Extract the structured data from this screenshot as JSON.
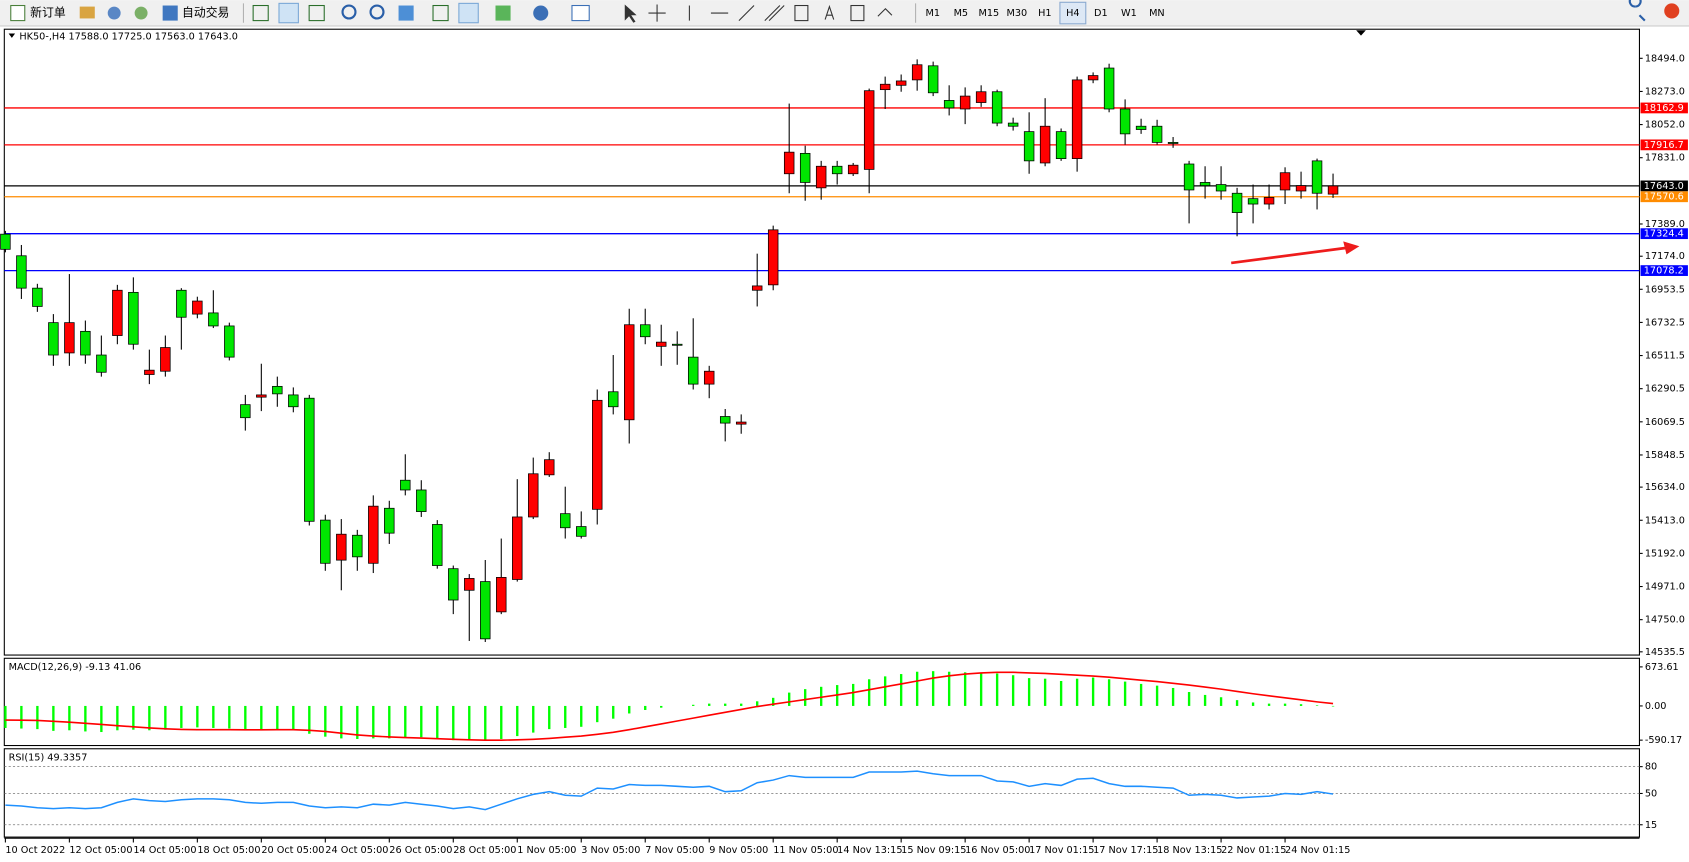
{
  "toolbar": {
    "new_order": "新订单",
    "auto_trading": "自动交易",
    "timeframes": [
      "M1",
      "M5",
      "M15",
      "M30",
      "H1",
      "H4",
      "D1",
      "W1",
      "MN"
    ]
  },
  "chart_data": [
    {
      "type": "candlestick",
      "title": "HK50-,H4  17588.0 17725.0 17563.0 17643.0",
      "up_color": "#ff0000",
      "down_color": "#00e600",
      "categories": [
        "10 Oct 2022",
        null,
        null,
        null,
        "12 Oct 05:00",
        null,
        null,
        null,
        "14 Oct 05:00",
        null,
        null,
        null,
        "18 Oct 05:00",
        null,
        null,
        null,
        "20 Oct 05:00",
        null,
        null,
        null,
        "24 Oct 05:00",
        null,
        null,
        null,
        "26 Oct 05:00",
        null,
        null,
        null,
        "28 Oct 05:00",
        null,
        null,
        null,
        "1 Nov 05:00",
        null,
        null,
        null,
        "3 Nov 05:00",
        null,
        null,
        null,
        "7 Nov 05:00",
        null,
        null,
        null,
        "9 Nov 05:00",
        null,
        null,
        null,
        "11 Nov 05:00",
        null,
        null,
        null,
        "14 Nov 13:15",
        null,
        null,
        null,
        "15 Nov 09:15",
        null,
        null,
        null,
        "16 Nov 05:00",
        null,
        null,
        null,
        "17 Nov 01:15",
        null,
        null,
        null,
        "17 Nov 17:15",
        null,
        null,
        null,
        "18 Nov 13:15",
        null,
        null,
        null,
        "22 Nov 01:15",
        null,
        null,
        null,
        "24 Nov 01:15",
        null,
        null,
        null
      ],
      "open": [
        17321,
        17177,
        16961,
        16731,
        16529,
        16673,
        16515,
        16645,
        16933,
        16385,
        16407,
        16947,
        16788,
        16796,
        16709,
        16184,
        16234,
        16306,
        16249,
        16227,
        15414,
        15147,
        15313,
        15126,
        15493,
        15680,
        15615,
        15385,
        15090,
        14946,
        15004,
        14802,
        15018,
        15435,
        15716,
        15457,
        15371,
        15486,
        16270,
        16083,
        16717,
        16573,
        16587,
        16501,
        16321,
        16105,
        16054,
        16947,
        16983,
        17724,
        17860,
        17630,
        17774,
        17724,
        17753,
        18285,
        18314,
        18350,
        18444,
        18213,
        18156,
        18199,
        18271,
        18062,
        18005,
        17796,
        18005,
        17825,
        18350,
        18429,
        18156,
        18041,
        18041,
        17933,
        17789,
        17666,
        17652,
        17594,
        17558,
        17522,
        17616,
        17609,
        17810,
        17588
      ],
      "high": [
        17343,
        17249,
        16990,
        16788,
        17055,
        16745,
        16645,
        16983,
        17033,
        16551,
        16645,
        16961,
        16904,
        16947,
        16731,
        16249,
        16457,
        16371,
        16299,
        16249,
        15450,
        15421,
        15349,
        15579,
        15543,
        15853,
        15680,
        15414,
        15111,
        15054,
        15148,
        15291,
        15687,
        15831,
        15867,
        15637,
        15472,
        16285,
        16515,
        16824,
        16824,
        16717,
        16673,
        16760,
        16443,
        16155,
        16119,
        17191,
        17378,
        18192,
        17911,
        17810,
        17810,
        17796,
        18292,
        18372,
        18386,
        18487,
        18472,
        18314,
        18300,
        18314,
        18285,
        18098,
        18134,
        18228,
        18026,
        18372,
        18400,
        18458,
        18220,
        18091,
        18084,
        17969,
        17810,
        17774,
        17774,
        17630,
        17652,
        17652,
        17767,
        17738,
        17825,
        17725
      ],
      "low": [
        17200,
        16889,
        16803,
        16443,
        16443,
        16457,
        16371,
        16587,
        16551,
        16321,
        16371,
        16551,
        16760,
        16695,
        16479,
        16011,
        16141,
        16170,
        16133,
        15378,
        15076,
        14946,
        15076,
        15061,
        15255,
        15579,
        15435,
        15090,
        14787,
        14608,
        14601,
        14787,
        15004,
        15421,
        15702,
        15291,
        15291,
        15385,
        16119,
        15925,
        16587,
        16443,
        16450,
        16285,
        16227,
        15939,
        15990,
        16839,
        16947,
        17594,
        17544,
        17551,
        17652,
        17709,
        17594,
        18156,
        18271,
        18278,
        18242,
        18113,
        18055,
        18170,
        18041,
        18012,
        17724,
        17774,
        17810,
        17738,
        18328,
        18134,
        17918,
        17990,
        17918,
        17897,
        17393,
        17558,
        17551,
        17307,
        17393,
        17486,
        17522,
        17558,
        17486,
        17563
      ],
      "close": [
        17220,
        16961,
        16839,
        16515,
        16731,
        16515,
        16400,
        16947,
        16587,
        16414,
        16565,
        16767,
        16875,
        16709,
        16501,
        16097,
        16249,
        16256,
        16170,
        15406,
        15126,
        15320,
        15169,
        15507,
        15327,
        15615,
        15471,
        15111,
        14881,
        15025,
        14622,
        15032,
        15435,
        15723,
        15817,
        15363,
        15306,
        16213,
        16170,
        16717,
        16637,
        16601,
        16580,
        16321,
        16407,
        16061,
        16068,
        16976,
        17350,
        17868,
        17666,
        17774,
        17724,
        17781,
        18278,
        18321,
        18343,
        18451,
        18264,
        18163,
        18242,
        18271,
        18062,
        18041,
        17810,
        18041,
        17825,
        18350,
        18379,
        18156,
        17990,
        18019,
        17933,
        17926,
        17616,
        17645,
        17609,
        17465,
        17522,
        17566,
        17731,
        17645,
        17594,
        17643
      ],
      "levels": [
        {
          "value": 18162.9,
          "label": "18162.9",
          "color": "#ff0000"
        },
        {
          "value": 17916.7,
          "label": "17916.7",
          "color": "#ff0000"
        },
        {
          "value": 17643.0,
          "label": "17643.0",
          "color": "#000000"
        },
        {
          "value": 17570.6,
          "label": "17570.6",
          "color": "#ff8c00"
        },
        {
          "value": 17324.4,
          "label": "17324.4",
          "color": "#0000ff"
        },
        {
          "value": 17078.2,
          "label": "17078.2",
          "color": "#0000ff"
        }
      ],
      "ylim": [
        14514,
        18688
      ],
      "yticks": [
        {
          "value": 18494.0,
          "label": "18494.0"
        },
        {
          "value": 18273.0,
          "label": "18273.0"
        },
        {
          "value": 18052.0,
          "label": "18052.0"
        },
        {
          "value": 17831.0,
          "label": "17831.0"
        },
        {
          "value": 17389.0,
          "label": "17389.0"
        },
        {
          "value": 17174.0,
          "label": "17174.0"
        },
        {
          "value": 16953.5,
          "label": "16953.5"
        },
        {
          "value": 16732.5,
          "label": "16732.5"
        },
        {
          "value": 16511.5,
          "label": "16511.5"
        },
        {
          "value": 16290.5,
          "label": "16290.5"
        },
        {
          "value": 16069.5,
          "label": "16069.5"
        },
        {
          "value": 15848.5,
          "label": "15848.5"
        },
        {
          "value": 15634.0,
          "label": "15634.0"
        },
        {
          "value": 15413.0,
          "label": "15413.0"
        },
        {
          "value": 15192.0,
          "label": "15192.0"
        },
        {
          "value": 14971.0,
          "label": "14971.0"
        },
        {
          "value": 14750.0,
          "label": "14750.0"
        },
        {
          "value": 14535.5,
          "label": "14535.5"
        }
      ]
    },
    {
      "type": "macd",
      "title": "MACD(12,26,9) -9.13 41.06",
      "series": [
        {
          "color": "#00ff00",
          "values": [
            -380,
            -390,
            -400,
            -430,
            -420,
            -440,
            -450,
            -420,
            -410,
            -420,
            -410,
            -380,
            -370,
            -380,
            -390,
            -420,
            -410,
            -410,
            -420,
            -480,
            -530,
            -560,
            -570,
            -560,
            -560,
            -540,
            -540,
            -560,
            -590,
            -580,
            -590,
            -570,
            -520,
            -460,
            -400,
            -380,
            -360,
            -280,
            -220,
            -130,
            -70,
            -30,
            0,
            20,
            40,
            40,
            40,
            80,
            140,
            230,
            290,
            330,
            360,
            380,
            460,
            510,
            550,
            590,
            600,
            590,
            580,
            570,
            560,
            530,
            480,
            470,
            430,
            470,
            490,
            460,
            420,
            380,
            350,
            310,
            240,
            190,
            150,
            100,
            60,
            40,
            40,
            30,
            10,
            -9.13
          ]
        },
        {
          "color": "#ff0000",
          "values": [
            -243,
            -245,
            -250,
            -265,
            -280,
            -300,
            -320,
            -340,
            -360,
            -380,
            -395,
            -405,
            -410,
            -410,
            -410,
            -412,
            -412,
            -410,
            -410,
            -420,
            -440,
            -470,
            -500,
            -520,
            -535,
            -545,
            -555,
            -565,
            -575,
            -585,
            -590,
            -590,
            -585,
            -575,
            -560,
            -540,
            -520,
            -490,
            -455,
            -410,
            -360,
            -310,
            -260,
            -210,
            -160,
            -110,
            -60,
            -10,
            30,
            70,
            110,
            150,
            190,
            230,
            280,
            330,
            380,
            430,
            480,
            520,
            550,
            570,
            580,
            580,
            570,
            560,
            545,
            530,
            515,
            495,
            470,
            445,
            420,
            390,
            360,
            325,
            290,
            250,
            210,
            175,
            140,
            105,
            70,
            41.06
          ]
        }
      ],
      "ylim": [
        -683,
        822
      ],
      "yticks": [
        {
          "value": 673.61,
          "label": "673.61"
        },
        {
          "value": 0,
          "label": "0.00"
        },
        {
          "value": -590.17,
          "label": "-590.17"
        }
      ]
    },
    {
      "type": "rsi",
      "title": "RSI(15) 49.3357",
      "series": [
        {
          "color": "#1e90ff",
          "values": [
            37,
            36,
            34,
            33,
            34,
            33,
            34,
            40,
            44,
            42,
            41,
            43,
            44,
            44,
            43,
            40,
            39,
            40,
            40,
            36,
            34,
            35,
            34,
            38,
            37,
            40,
            38,
            36,
            33,
            35,
            32,
            38,
            44,
            49,
            52,
            48,
            47,
            56,
            55,
            60,
            59,
            59,
            58,
            57,
            58,
            52,
            53,
            62,
            65,
            70,
            68,
            68,
            68,
            68,
            74,
            74,
            74,
            75,
            72,
            70,
            70,
            70,
            64,
            63,
            58,
            61,
            59,
            66,
            67,
            61,
            58,
            58,
            57,
            56,
            48,
            49,
            48,
            45,
            46,
            47,
            50,
            49,
            52,
            49.3357
          ]
        }
      ],
      "ylim": [
        0,
        100
      ],
      "yticks": [
        80,
        50,
        15
      ],
      "grid": true
    }
  ]
}
